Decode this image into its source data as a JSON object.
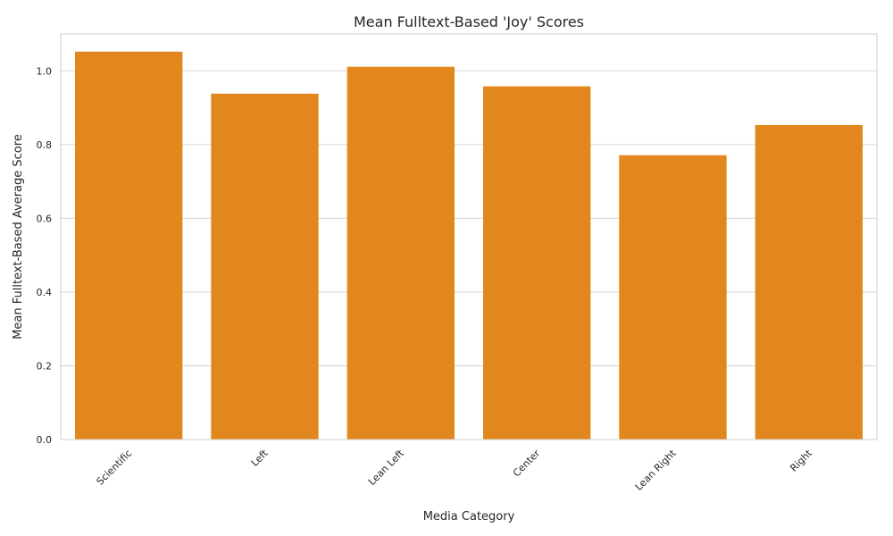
{
  "chart_data": {
    "type": "bar",
    "title": "Mean Fulltext-Based 'Joy' Scores",
    "xlabel": "Media Category",
    "ylabel": "Mean Fulltext-Based Average Score",
    "categories": [
      "Scientific",
      "Left",
      "Lean Left",
      "Center",
      "Lean Right",
      "Right"
    ],
    "values": [
      1.052,
      0.938,
      1.011,
      0.958,
      0.771,
      0.853
    ],
    "ylim": [
      0,
      1.1
    ],
    "yticks": [
      0.0,
      0.2,
      0.4,
      0.6,
      0.8,
      1.0
    ],
    "ytick_labels": [
      "0.0",
      "0.2",
      "0.4",
      "0.6",
      "0.8",
      "1.0"
    ],
    "grid": true,
    "bar_color": "#e1871e",
    "grid_color": "#d5d5d5",
    "spine_color": "#cccccc"
  }
}
